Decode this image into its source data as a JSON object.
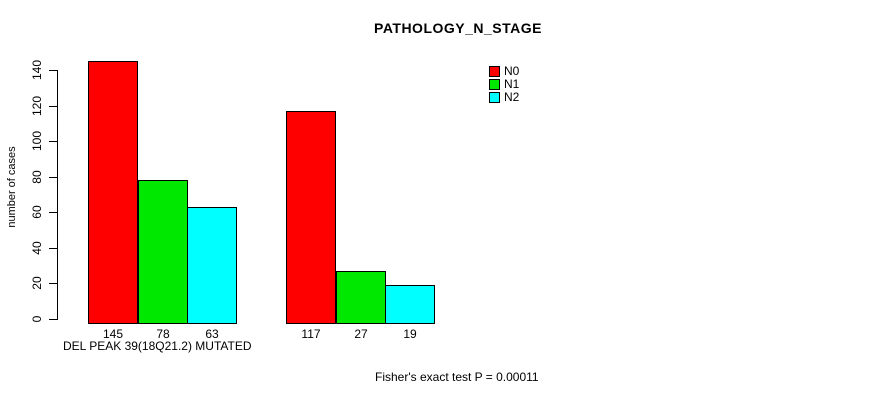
{
  "chart_data": {
    "type": "bar",
    "title": "PATHOLOGY_N_STAGE",
    "ylabel": "number of cases",
    "xlabel": "DEL PEAK 39(18Q21.2) MUTATED",
    "annotation": "Fisher's exact test P = 0.00011",
    "ylim": [
      0,
      140
    ],
    "yticks": [
      0,
      20,
      40,
      60,
      80,
      100,
      120,
      140
    ],
    "grid": false,
    "legend_position": "top-right",
    "bar_value_labels_shown": true,
    "categories": [
      "DEL PEAK 39(18Q21.2) MUTATED",
      ""
    ],
    "series": [
      {
        "name": "N0",
        "color": "#FF0000",
        "values": [
          145,
          117
        ]
      },
      {
        "name": "N1",
        "color": "#00E800",
        "values": [
          78,
          27
        ]
      },
      {
        "name": "N2",
        "color": "#00FFFF",
        "values": [
          63,
          19
        ]
      }
    ]
  }
}
